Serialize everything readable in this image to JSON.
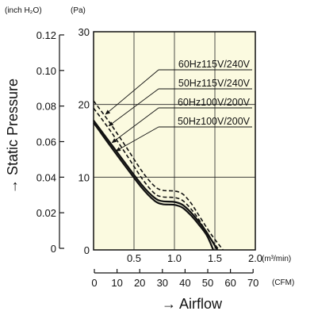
{
  "chart_data": {
    "type": "line",
    "title": "",
    "unit_labels": {
      "pressure_inch": "(inch H₂O)",
      "pressure_pa": "(Pa)",
      "flow_m3": "(m³/min)",
      "flow_cfm": "(CFM)"
    },
    "ylabel": "→ Static Pressure",
    "xlabel": "→ Airflow",
    "x_unit": "m³/min",
    "y_unit": "Pa",
    "xlim": [
      0,
      2.0
    ],
    "ylim": [
      0,
      30
    ],
    "x_ticks": [
      "0.5",
      "1.0",
      "1.5",
      "2.0"
    ],
    "y_ticks_pa": [
      "10",
      "20",
      "30"
    ],
    "y_ticks_inch": [
      "0",
      "0.02",
      "0.04",
      "0.06",
      "0.08",
      "0.10",
      "0.12"
    ],
    "cfm_ticks": [
      "0",
      "10",
      "20",
      "30",
      "40",
      "50",
      "60",
      "70"
    ],
    "grid": true,
    "background_color": "#fbfae0",
    "series": [
      {
        "name": "60Hz115V/240V",
        "style": "dashed",
        "x": [
          0,
          0.2,
          0.4,
          0.6,
          0.75,
          0.85,
          1.0,
          1.1,
          1.2,
          1.3,
          1.45,
          1.6
        ],
        "y": [
          20.5,
          17.5,
          14.2,
          10.8,
          8.8,
          8.2,
          8.1,
          7.7,
          6.5,
          4.8,
          2.2,
          0
        ]
      },
      {
        "name": "50Hz115V/240V",
        "style": "dashed",
        "x": [
          0,
          0.2,
          0.4,
          0.6,
          0.75,
          0.85,
          1.0,
          1.1,
          1.2,
          1.3,
          1.42,
          1.55
        ],
        "y": [
          19.5,
          16.5,
          13.2,
          9.8,
          7.8,
          7.3,
          7.2,
          6.8,
          5.7,
          4.2,
          2.0,
          0
        ]
      },
      {
        "name": "60Hz100V/200V",
        "style": "solid",
        "x": [
          0,
          0.2,
          0.4,
          0.6,
          0.75,
          0.85,
          1.0,
          1.1,
          1.2,
          1.3,
          1.4,
          1.53
        ],
        "y": [
          17.8,
          14.8,
          11.8,
          8.9,
          7.2,
          6.7,
          6.6,
          6.2,
          5.2,
          3.9,
          2.4,
          0
        ]
      },
      {
        "name": "50Hz100V/200V",
        "style": "solid",
        "x": [
          0,
          0.2,
          0.4,
          0.6,
          0.75,
          0.85,
          1.0,
          1.1,
          1.2,
          1.3,
          1.4,
          1.48
        ],
        "y": [
          17.5,
          14.4,
          11.4,
          8.5,
          6.8,
          6.3,
          6.2,
          5.8,
          4.8,
          3.5,
          2.0,
          0
        ]
      }
    ]
  }
}
